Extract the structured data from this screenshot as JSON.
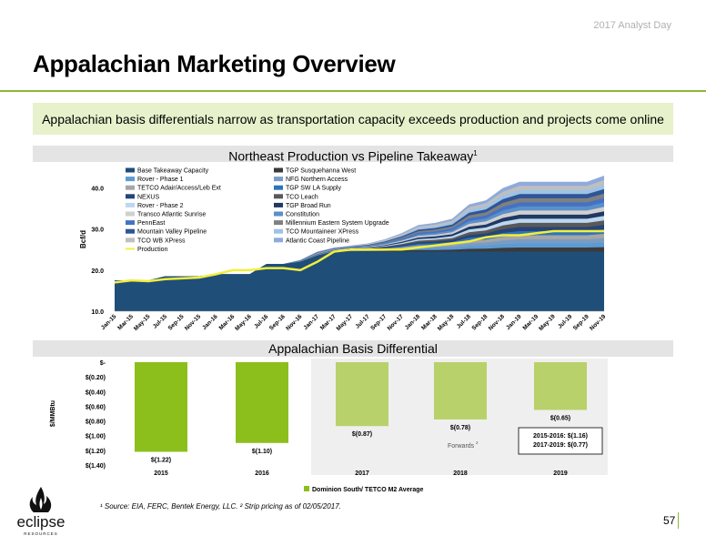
{
  "header": {
    "event": "2017 Analyst Day",
    "title": "Appalachian Marketing Overview",
    "banner": "Appalachian basis differentials narrow as transportation capacity exceeds production and projects come online"
  },
  "colors": {
    "accent": "#8db63c",
    "production": "#f2ee3c",
    "bar_actual": "#8cbf1c",
    "bar_forward": "#b8d16a"
  },
  "chart_data": [
    {
      "type": "area",
      "title": "Northeast Production vs Pipeline Takeaway",
      "title_sup": "1",
      "ylabel": "Bcf/d",
      "ylim": [
        10,
        45
      ],
      "yticks": [
        "10.0",
        "20.0",
        "30.0",
        "40.0"
      ],
      "x": [
        "Jan-15",
        "Mar-15",
        "May-15",
        "Jul-15",
        "Sep-15",
        "Nov-15",
        "Jan-16",
        "Mar-16",
        "May-16",
        "Jul-16",
        "Sep-16",
        "Nov-16",
        "Jan-17",
        "Mar-17",
        "May-17",
        "Jul-17",
        "Sep-17",
        "Nov-17",
        "Jan-18",
        "Mar-18",
        "May-18",
        "Jul-18",
        "Sep-18",
        "Nov-18",
        "Jan-19",
        "Mar-19",
        "May-19",
        "Jul-19",
        "Sep-19",
        "Nov-19"
      ],
      "base_takeaway": [
        17.5,
        17.5,
        17.5,
        18.5,
        18.5,
        18.5,
        19.0,
        19.0,
        19.0,
        21.5,
        21.5,
        22.0,
        23.5,
        24.5,
        24.5,
        24.5,
        24.5,
        24.5,
        24.5,
        24.5,
        24.5,
        24.5,
        24.5,
        24.5,
        24.5,
        24.5,
        24.5,
        24.5,
        24.5,
        24.5
      ],
      "takeaway_total": [
        17.5,
        17.5,
        17.5,
        18.5,
        18.5,
        18.5,
        19.0,
        19.0,
        19.0,
        21.5,
        21.5,
        22.5,
        24.5,
        25.5,
        26.0,
        26.5,
        27.5,
        29.0,
        31.0,
        31.5,
        32.5,
        36.0,
        37.0,
        40.0,
        41.5,
        41.5,
        41.5,
        41.5,
        41.5,
        43.0
      ],
      "production": [
        17.0,
        17.5,
        17.3,
        17.8,
        18.0,
        18.2,
        19.0,
        20.0,
        20.0,
        20.5,
        20.5,
        20.0,
        22.0,
        24.5,
        25.0,
        25.0,
        25.0,
        25.0,
        25.5,
        26.0,
        26.5,
        27.0,
        28.0,
        28.5,
        28.5,
        29.0,
        29.5,
        29.5,
        29.5,
        29.5
      ],
      "legend": [
        {
          "label": "Base Takeaway Capacity",
          "color": "#1f4e79"
        },
        {
          "label": "TGP Susquehanna West",
          "color": "#3a3a3a"
        },
        {
          "label": "Rover - Phase 1",
          "color": "#5b9bd5"
        },
        {
          "label": "NFG Northern Access",
          "color": "#7a9cc4"
        },
        {
          "label": "TETCO Adair/Access/Leb Ext",
          "color": "#a6a6a6"
        },
        {
          "label": "TGP SW LA Supply",
          "color": "#2e75b6"
        },
        {
          "label": "NEXUS",
          "color": "#264478"
        },
        {
          "label": "TCO Leach",
          "color": "#595959"
        },
        {
          "label": "Rover - Phase 2",
          "color": "#bdd7ee"
        },
        {
          "label": "TGP Broad Run",
          "color": "#203864"
        },
        {
          "label": "Transco Atlantic Sunrise",
          "color": "#d0d0d0"
        },
        {
          "label": "Constitution",
          "color": "#5b8fc9"
        },
        {
          "label": "PennEast",
          "color": "#4472c4"
        },
        {
          "label": "Millennium Eastern System Upgrade",
          "color": "#808080"
        },
        {
          "label": "Mountain Valley Pipeline",
          "color": "#2f5597"
        },
        {
          "label": "TCO Mountaineer XPress",
          "color": "#9dc3e6"
        },
        {
          "label": "TCO WB XPress",
          "color": "#bfbfbf"
        },
        {
          "label": "Atlantic Coast Pipeline",
          "color": "#8faadc"
        },
        {
          "label": "Production",
          "color": "#f2ee3c"
        }
      ]
    },
    {
      "type": "bar",
      "title": "Appalachian Basis Differential",
      "ylabel": "$/MMBtu",
      "yticks": [
        "$-",
        "$(0.20)",
        "$(0.40)",
        "$(0.60)",
        "$(0.80)",
        "$(1.00)",
        "$(1.20)",
        "$(1.40)"
      ],
      "ylim": [
        -1.4,
        0
      ],
      "categories": [
        "2015",
        "2016",
        "2017",
        "2018",
        "2019"
      ],
      "values": [
        -1.22,
        -1.1,
        -0.87,
        -0.78,
        -0.65
      ],
      "labels": [
        "$(1.22)",
        "$(1.10)",
        "$(0.87)",
        "$(0.78)",
        "$(0.65)"
      ],
      "forward_start": 2,
      "forwards_label": "Forwards",
      "forwards_sup": "2",
      "summary": [
        "2015-2016: $(1.16)",
        "2017-2019: $(0.77)"
      ],
      "legend": "Dominion South/ TETCO M2 Average"
    }
  ],
  "footer": {
    "note": "¹ Source: EIA, FERC, Bentek Energy, LLC. ² Strip pricing as of 02/05/2017.",
    "page": "57",
    "logo_text": "eclipse",
    "logo_sub": "RESOURCES"
  }
}
